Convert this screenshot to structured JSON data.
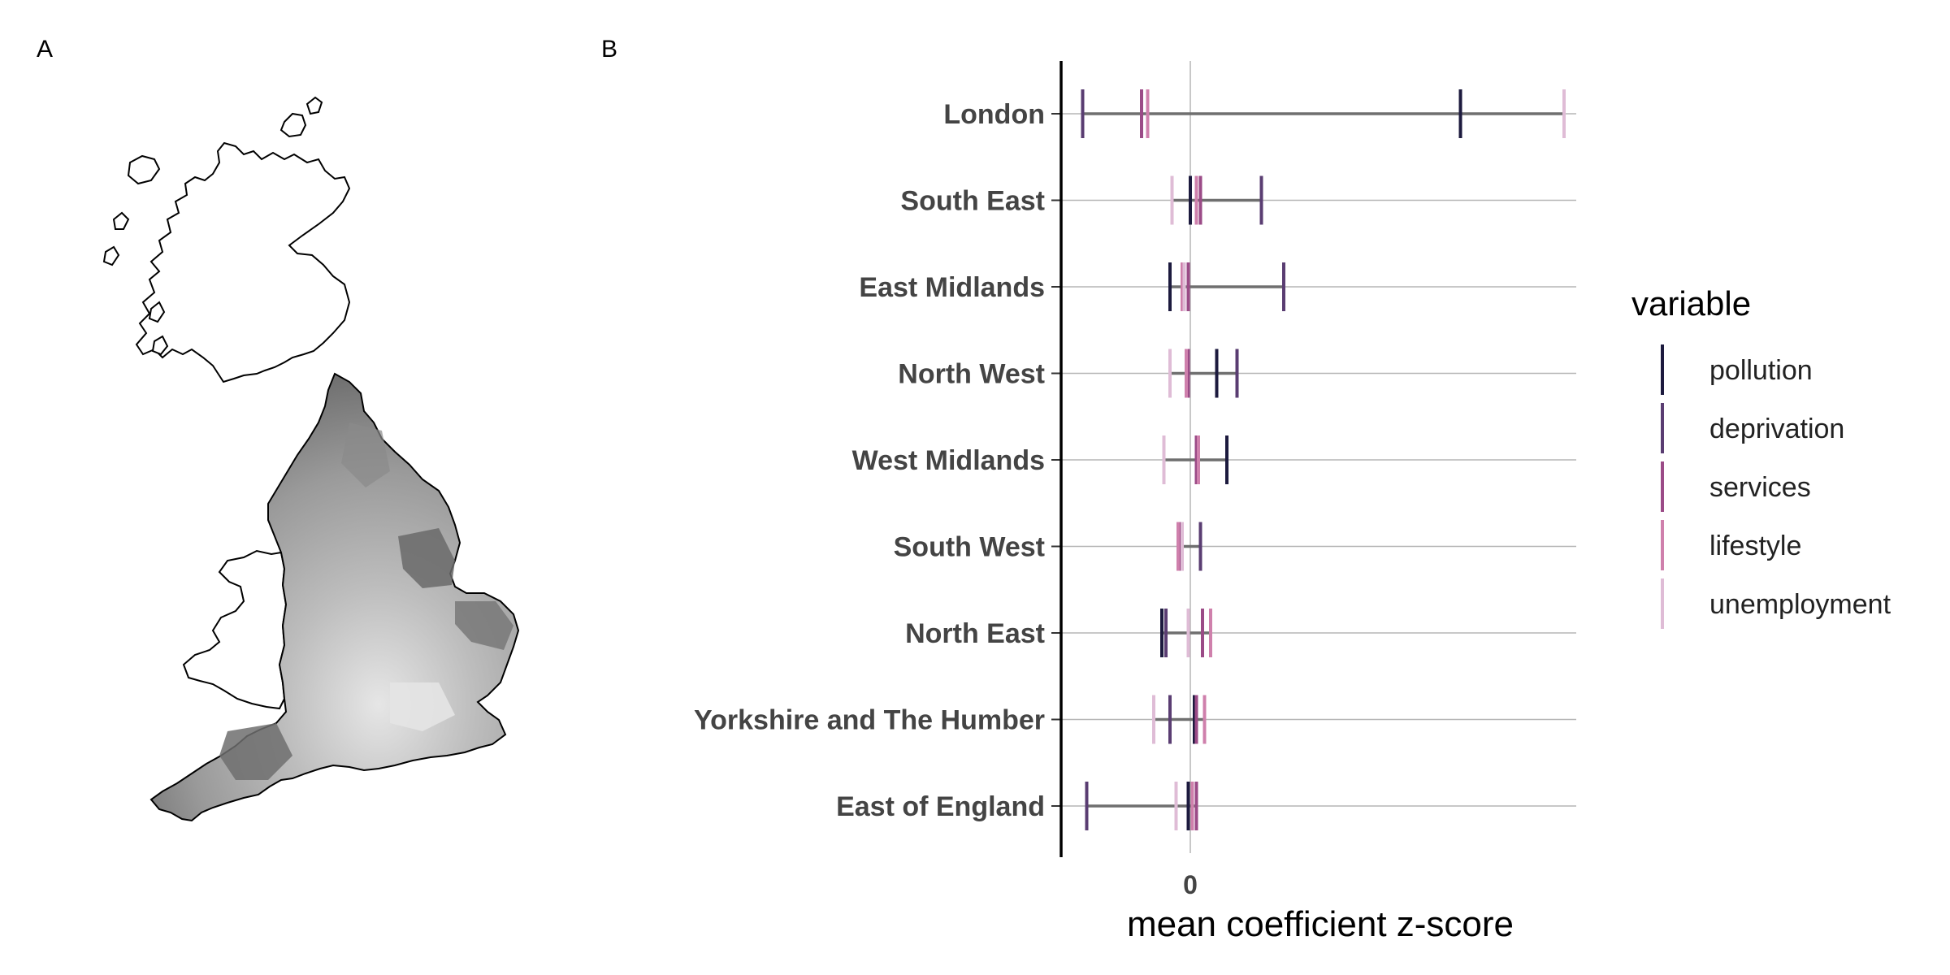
{
  "panels": {
    "map_label": "A",
    "chart_label": "B"
  },
  "chart_data": {
    "type": "range-dot",
    "xlabel": "mean coefficient z-score",
    "ylabel": "",
    "x_ticks": [
      0
    ],
    "x_tick_labels": [
      "0"
    ],
    "xlim": [
      -0.65,
      1.95
    ],
    "grid": "horizontal lines per category, vertical line at 0",
    "legend_title": "variable",
    "legend_position": "right",
    "variables": [
      "pollution",
      "deprivation",
      "services",
      "lifestyle",
      "unemployment"
    ],
    "colors": {
      "pollution": "#1c1a3e",
      "deprivation": "#5a3d72",
      "services": "#9b4b87",
      "lifestyle": "#cf80ac",
      "unemployment": "#dfbcd6"
    },
    "categories": [
      "London",
      "South East",
      "East Midlands",
      "North West",
      "West Midlands",
      "South West",
      "North East",
      "Yorkshire and The Humber",
      "East of England"
    ],
    "series": [
      {
        "name": "pollution",
        "values": [
          1.33,
          0.0,
          -0.1,
          0.13,
          0.18,
          0.05,
          -0.14,
          0.02,
          -0.01
        ]
      },
      {
        "name": "deprivation",
        "values": [
          -0.53,
          0.35,
          0.46,
          0.23,
          0.04,
          0.05,
          -0.12,
          -0.1,
          -0.51
        ]
      },
      {
        "name": "services",
        "values": [
          -0.24,
          0.05,
          -0.01,
          -0.01,
          0.03,
          -0.05,
          0.06,
          0.03,
          0.03
        ]
      },
      {
        "name": "lifestyle",
        "values": [
          -0.21,
          0.03,
          -0.04,
          -0.02,
          0.04,
          -0.06,
          0.1,
          0.07,
          0.01
        ]
      },
      {
        "name": "unemployment",
        "values": [
          1.84,
          -0.09,
          -0.03,
          -0.1,
          -0.13,
          -0.04,
          -0.01,
          -0.18,
          -0.07
        ]
      }
    ]
  },
  "map": {
    "description_colors": {
      "outline": "#000000",
      "region_dark": "#6b6b6b",
      "region_light": "#d6d6d6",
      "background": "#ffffff"
    }
  }
}
